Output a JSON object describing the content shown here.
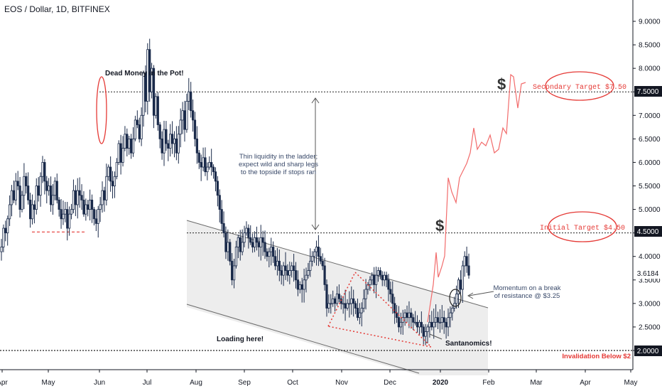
{
  "header": {
    "title": "EOS / Dollar, 1D, BITFINEX"
  },
  "chart_data": {
    "type": "candlestick",
    "y_ticks": [
      "9.0000",
      "8.5000",
      "8.0000",
      "7.5000",
      "7.0000",
      "6.5000",
      "6.0000",
      "5.5000",
      "5.0000",
      "4.5000",
      "4.0000",
      "3.5000",
      "3.0000",
      "2.5000",
      "2.0000"
    ],
    "ylim": [
      1.6,
      9.6
    ],
    "x_ticks": [
      "Apr",
      "May",
      "Jun",
      "Jul",
      "Aug",
      "Sep",
      "Oct",
      "Nov",
      "Dec",
      "2020",
      "Feb",
      "Mar",
      "Apr",
      "May"
    ],
    "price_labels": {
      "last": "3.6184",
      "secondary": "7.5000",
      "initial": "4.5000",
      "invalidation": "2.0000"
    },
    "levels": {
      "secondary": 7.5,
      "initial": 4.5,
      "invalidation": 2.0,
      "prior_low": 4.52
    },
    "annotations": {
      "dead_money": "Dead Money in the Pot!",
      "thin_liquidity": [
        "Thin liquidity in the ladder;",
        "expect wild and sharp legs",
        "to the topside if stops ran"
      ],
      "momentum": [
        "Momentum on a break",
        "of resistance @ $3.25"
      ],
      "loading": "Loading here!",
      "santanomics": "Santanomics!",
      "secondary_target": "Secondary Target $7.50",
      "initial_target": "Initial Target $4.50",
      "invalidation": "Invalidation Below $2",
      "dollar_sign": "$"
    },
    "colors": {
      "candle": "#1a2a4a",
      "projection": "#f26b6b",
      "target_red": "#e53935",
      "channel_fill": "#ededed",
      "channel_line": "#6b6b6b",
      "label_box": "#131722"
    },
    "series_closes": [
      4.2,
      4.6,
      4.5,
      4.8,
      5.1,
      5.4,
      5.2,
      5.6,
      5.5,
      5.0,
      5.3,
      5.7,
      5.5,
      5.2,
      4.8,
      5.1,
      5.0,
      5.5,
      5.3,
      5.7,
      6.0,
      5.6,
      5.4,
      5.5,
      5.1,
      5.3,
      5.6,
      5.2,
      5.0,
      4.8,
      4.9,
      5.0,
      4.6,
      4.9,
      5.0,
      5.4,
      5.1,
      5.4,
      5.3,
      5.2,
      4.9,
      5.1,
      5.0,
      5.2,
      5.0,
      4.8,
      4.7,
      5.0,
      5.1,
      5.4,
      5.2,
      5.7,
      5.9,
      5.6,
      5.5,
      5.7,
      6.0,
      6.4,
      6.0,
      6.3,
      6.6,
      6.3,
      6.5,
      6.2,
      6.5,
      6.9,
      6.8,
      6.5,
      7.0,
      7.9,
      7.3,
      8.4,
      7.5,
      8.0,
      7.0,
      7.4,
      6.8,
      6.5,
      6.2,
      6.7,
      6.4,
      6.3,
      6.6,
      6.4,
      6.5,
      6.2,
      6.6,
      6.9,
      7.1,
      6.7,
      7.3,
      7.5,
      7.1,
      6.9,
      6.5,
      6.2,
      6.0,
      5.9,
      6.1,
      5.8,
      5.9,
      6.0,
      5.9,
      5.8,
      5.6,
      5.3,
      5.0,
      4.7,
      4.5,
      4.1,
      4.3,
      3.9,
      3.5,
      3.8,
      4.2,
      4.4,
      4.1,
      4.3,
      4.5,
      4.6,
      4.4,
      4.3,
      4.2,
      4.4,
      4.3,
      4.2,
      4.4,
      4.3,
      4.1,
      4.0,
      4.1,
      4.2,
      4.0,
      3.8,
      3.9,
      3.7,
      3.6,
      3.8,
      3.7,
      3.6,
      3.7,
      3.8,
      3.7,
      3.5,
      3.3,
      3.4,
      3.3,
      3.5,
      3.6,
      3.7,
      3.9,
      4.0,
      4.1,
      4.2,
      4.0,
      3.9,
      3.8,
      3.4,
      2.9,
      3.0,
      3.0,
      3.1,
      3.0,
      3.2,
      3.1,
      3.0,
      3.0,
      2.9,
      3.0,
      3.0,
      3.1,
      3.0,
      2.9,
      2.7,
      2.8,
      2.9,
      3.1,
      3.3,
      3.4,
      3.5,
      3.6,
      3.4,
      3.6,
      3.7,
      3.6,
      3.5,
      3.6,
      3.5,
      3.3,
      3.2,
      3.0,
      2.8,
      2.7,
      2.5,
      2.6,
      2.7,
      2.8,
      2.7,
      2.8,
      2.7,
      2.6,
      2.6,
      2.5,
      2.6,
      2.5,
      2.3,
      2.4,
      2.5,
      2.6,
      2.5,
      2.6,
      2.7,
      2.6,
      2.6,
      2.7,
      2.6,
      2.5,
      2.7,
      2.8,
      2.9,
      3.0,
      3.2,
      3.5,
      3.3,
      3.8,
      4.0,
      3.8,
      3.6
    ]
  }
}
